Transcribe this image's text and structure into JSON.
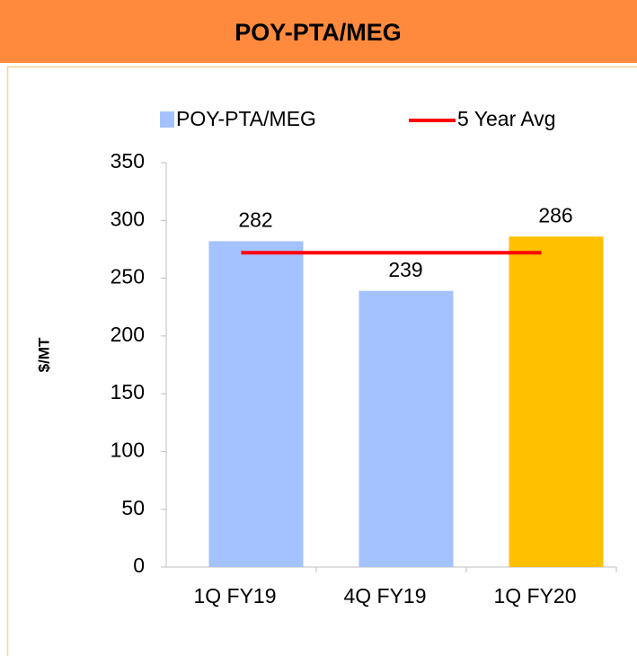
{
  "chart_data": {
    "type": "bar",
    "title": "POY-PTA/MEG",
    "y_label": "$/MT",
    "categories": [
      "1Q FY19",
      "4Q FY19",
      "1Q FY20"
    ],
    "series": [
      {
        "name": "POY-PTA/MEG",
        "type": "bar",
        "color": "#a4c2ff",
        "point_colors": [
          "#a4c2ff",
          "#a4c2ff",
          "#ffc000"
        ],
        "values": [
          282,
          239,
          286
        ]
      },
      {
        "name": "5 Year Avg",
        "type": "line",
        "color": "#ff0000",
        "values": [
          272,
          272,
          272
        ]
      }
    ],
    "ylim": [
      0,
      350
    ],
    "yticks": [
      0,
      50,
      100,
      150,
      200,
      250,
      300,
      350
    ],
    "data_labels": true
  }
}
